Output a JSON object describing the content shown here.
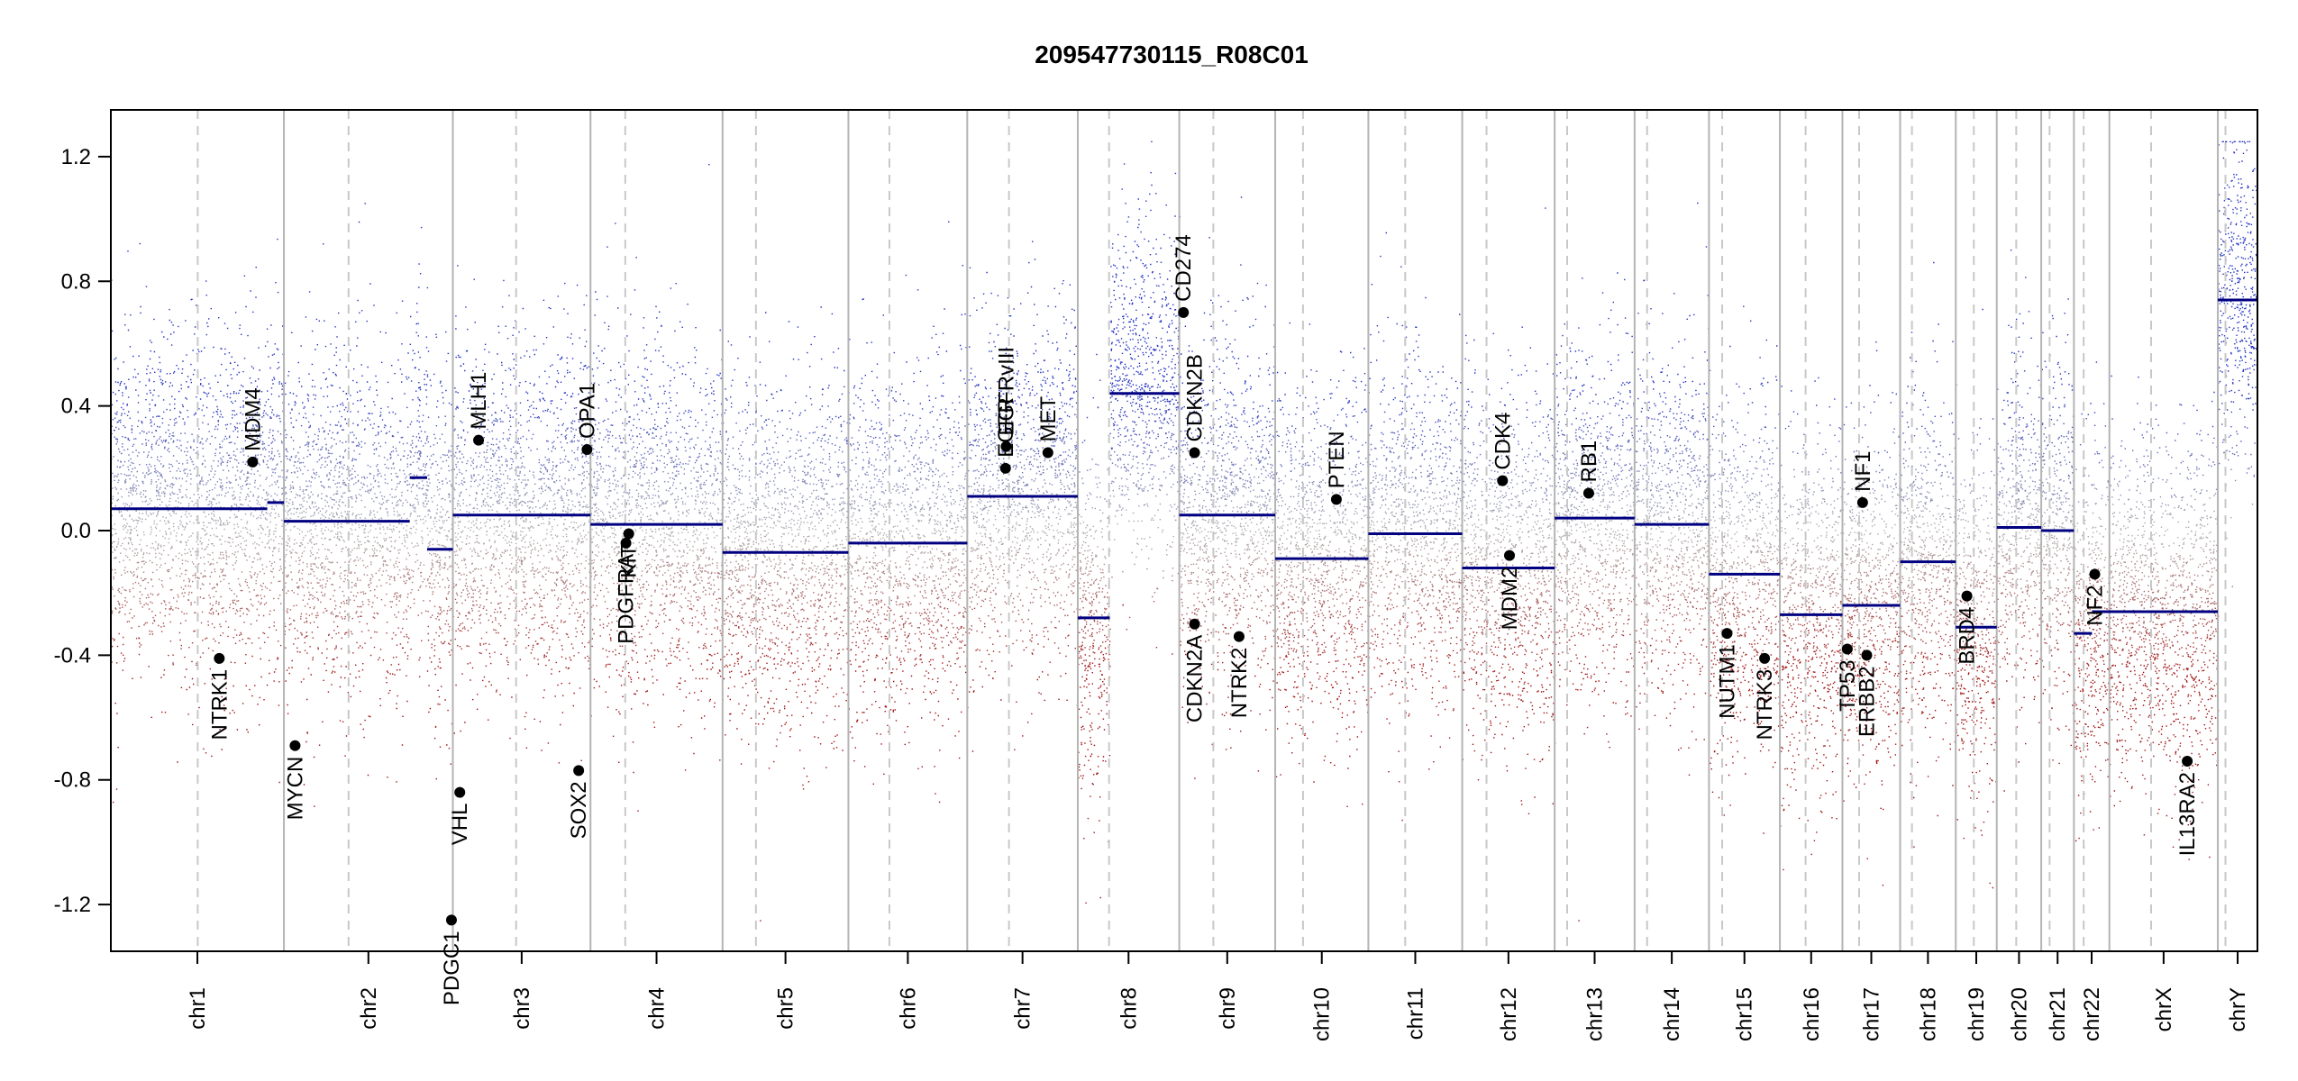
{
  "chart_data": {
    "type": "scatter",
    "title": "209547730115_R08C01",
    "xlabel": "",
    "ylabel": "",
    "ylim": [
      -1.35,
      1.35
    ],
    "y_ticks": [
      -1.2,
      -0.8,
      -0.4,
      0.0,
      0.4,
      0.8,
      1.2
    ],
    "y_tick_labels": [
      "-1.2",
      "-0.8",
      "-0.4",
      "0.0",
      "0.4",
      "0.8",
      "1.2"
    ],
    "grid": false,
    "colors": {
      "gain": "#2030c0",
      "loss": "#a01010",
      "neutral": "#b0b0b0",
      "segment": "#000080",
      "boundary": "#b4b4b4",
      "centromere": "#c8c8c8"
    },
    "chromosomes": [
      {
        "name": "chr1",
        "start": 0,
        "end": 249,
        "cen": 125
      },
      {
        "name": "chr2",
        "start": 249,
        "end": 492,
        "cen": 93
      },
      {
        "name": "chr3",
        "start": 492,
        "end": 690,
        "cen": 91
      },
      {
        "name": "chr4",
        "start": 690,
        "end": 880,
        "cen": 50
      },
      {
        "name": "chr5",
        "start": 880,
        "end": 1061,
        "cen": 48
      },
      {
        "name": "chr6",
        "start": 1061,
        "end": 1232,
        "cen": 59
      },
      {
        "name": "chr7",
        "start": 1232,
        "end": 1391,
        "cen": 60
      },
      {
        "name": "chr8",
        "start": 1391,
        "end": 1537,
        "cen": 45
      },
      {
        "name": "chr9",
        "start": 1537,
        "end": 1675,
        "cen": 49
      },
      {
        "name": "chr10",
        "start": 1675,
        "end": 1809,
        "cen": 40
      },
      {
        "name": "chr11",
        "start": 1809,
        "end": 1944,
        "cen": 53
      },
      {
        "name": "chr12",
        "start": 1944,
        "end": 2077,
        "cen": 35
      },
      {
        "name": "chr13",
        "start": 2077,
        "end": 2192,
        "cen": 18
      },
      {
        "name": "chr14",
        "start": 2192,
        "end": 2299,
        "cen": 18
      },
      {
        "name": "chr15",
        "start": 2299,
        "end": 2401,
        "cen": 19
      },
      {
        "name": "chr16",
        "start": 2401,
        "end": 2491,
        "cen": 37
      },
      {
        "name": "chr17",
        "start": 2491,
        "end": 2574,
        "cen": 24
      },
      {
        "name": "chr18",
        "start": 2574,
        "end": 2654,
        "cen": 17
      },
      {
        "name": "chr19",
        "start": 2654,
        "end": 2713,
        "cen": 26
      },
      {
        "name": "chr20",
        "start": 2713,
        "end": 2777,
        "cen": 28
      },
      {
        "name": "chr21",
        "start": 2777,
        "end": 2824,
        "cen": 12
      },
      {
        "name": "chr22",
        "start": 2824,
        "end": 2875,
        "cen": 14
      },
      {
        "name": "chrX",
        "start": 2875,
        "end": 3031,
        "cen": 60
      },
      {
        "name": "chrY",
        "start": 3031,
        "end": 3088,
        "cen": 11
      }
    ],
    "segments": [
      {
        "x0": 0,
        "x1": 225,
        "y": 0.07
      },
      {
        "x0": 225,
        "x1": 249,
        "y": 0.09
      },
      {
        "x0": 249,
        "x1": 430,
        "y": 0.03
      },
      {
        "x0": 430,
        "x1": 455,
        "y": 0.17
      },
      {
        "x0": 455,
        "x1": 492,
        "y": -0.06
      },
      {
        "x0": 492,
        "x1": 690,
        "y": 0.05
      },
      {
        "x0": 690,
        "x1": 880,
        "y": 0.02
      },
      {
        "x0": 880,
        "x1": 1061,
        "y": -0.07
      },
      {
        "x0": 1061,
        "x1": 1232,
        "y": -0.04
      },
      {
        "x0": 1232,
        "x1": 1391,
        "y": 0.11
      },
      {
        "x0": 1391,
        "x1": 1437,
        "y": -0.28
      },
      {
        "x0": 1437,
        "x1": 1537,
        "y": 0.44
      },
      {
        "x0": 1537,
        "x1": 1675,
        "y": 0.05
      },
      {
        "x0": 1675,
        "x1": 1809,
        "y": -0.09
      },
      {
        "x0": 1809,
        "x1": 1944,
        "y": -0.01
      },
      {
        "x0": 1944,
        "x1": 2077,
        "y": -0.12
      },
      {
        "x0": 2077,
        "x1": 2192,
        "y": 0.04
      },
      {
        "x0": 2192,
        "x1": 2299,
        "y": 0.02
      },
      {
        "x0": 2299,
        "x1": 2401,
        "y": -0.14
      },
      {
        "x0": 2401,
        "x1": 2491,
        "y": -0.27
      },
      {
        "x0": 2491,
        "x1": 2574,
        "y": -0.24
      },
      {
        "x0": 2574,
        "x1": 2654,
        "y": -0.1
      },
      {
        "x0": 2654,
        "x1": 2713,
        "y": -0.31
      },
      {
        "x0": 2713,
        "x1": 2777,
        "y": 0.01
      },
      {
        "x0": 2777,
        "x1": 2824,
        "y": 0.0
      },
      {
        "x0": 2824,
        "x1": 2850,
        "y": -0.33
      },
      {
        "x0": 2850,
        "x1": 3031,
        "y": -0.26
      },
      {
        "x0": 3031,
        "x1": 3088,
        "y": 0.74
      }
    ],
    "genes": [
      {
        "name": "MDM4",
        "x": 204,
        "y": 0.22,
        "above": true
      },
      {
        "name": "NTRK1",
        "x": 156,
        "y": -0.41,
        "above": false
      },
      {
        "name": "MYCN",
        "x": 265,
        "y": -0.69,
        "above": false
      },
      {
        "name": "MLH1",
        "x": 529,
        "y": 0.29,
        "above": true
      },
      {
        "name": "VHL",
        "x": 502,
        "y": -0.84,
        "above": false
      },
      {
        "name": "PDGC1",
        "x": 490,
        "y": -1.25,
        "above": false
      },
      {
        "name": "OPA1",
        "x": 685,
        "y": 0.26,
        "above": true
      },
      {
        "name": "SOX2",
        "x": 673,
        "y": -0.77,
        "above": false
      },
      {
        "name": "KIT",
        "x": 745,
        "y": -0.01,
        "above": false
      },
      {
        "name": "PDGFRA",
        "x": 741,
        "y": -0.04,
        "above": false
      },
      {
        "name": "EGFR",
        "x": 1287,
        "y": 0.2,
        "above": true
      },
      {
        "name": "EGFRvIII",
        "x": 1288,
        "y": 0.27,
        "above": true
      },
      {
        "name": "MET",
        "x": 1348,
        "y": 0.25,
        "above": true
      },
      {
        "name": "CD274",
        "x": 1543,
        "y": 0.7,
        "above": true
      },
      {
        "name": "CDKN2B",
        "x": 1559,
        "y": 0.25,
        "above": true
      },
      {
        "name": "CDKN2A",
        "x": 1559,
        "y": -0.3,
        "above": false
      },
      {
        "name": "NTRK2",
        "x": 1623,
        "y": -0.34,
        "above": false
      },
      {
        "name": "PTEN",
        "x": 1763,
        "y": 0.1,
        "above": true
      },
      {
        "name": "CDK4",
        "x": 2002,
        "y": 0.16,
        "above": true
      },
      {
        "name": "MDM2",
        "x": 2012,
        "y": -0.08,
        "above": false
      },
      {
        "name": "RB1",
        "x": 2126,
        "y": 0.12,
        "above": true
      },
      {
        "name": "NUTM1",
        "x": 2325,
        "y": -0.33,
        "above": false
      },
      {
        "name": "NTRK3",
        "x": 2379,
        "y": -0.41,
        "above": false
      },
      {
        "name": "TP53",
        "x": 2498,
        "y": -0.38,
        "above": false
      },
      {
        "name": "ERBB2",
        "x": 2526,
        "y": -0.4,
        "above": false
      },
      {
        "name": "NF1",
        "x": 2520,
        "y": 0.09,
        "above": true
      },
      {
        "name": "BRD4",
        "x": 2670,
        "y": -0.21,
        "above": false
      },
      {
        "name": "NF2",
        "x": 2854,
        "y": -0.14,
        "above": false
      },
      {
        "name": "IL13RA2",
        "x": 2987,
        "y": -0.74,
        "above": false
      }
    ]
  }
}
